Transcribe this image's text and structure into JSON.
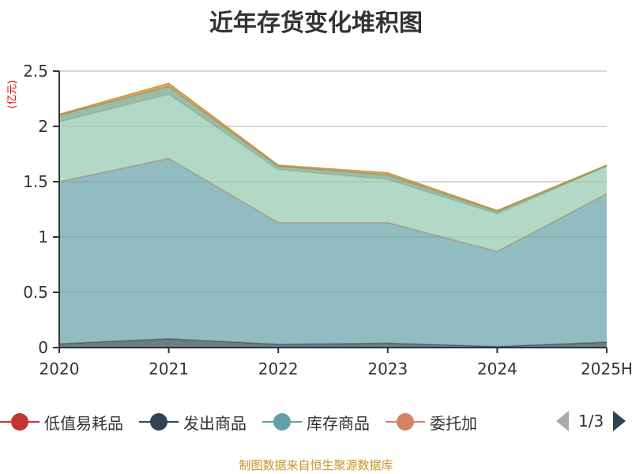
{
  "title": "近年存货变化堆积图",
  "unit": "(亿元)",
  "source": "制图数据来自恒生聚源数据库",
  "legend": {
    "items": [
      "低值易耗品",
      "发出商品",
      "库存商品",
      "委托加"
    ],
    "page": "1/3"
  },
  "chart_data": {
    "type": "area",
    "stacked": true,
    "title": "近年存货变化堆积图",
    "ylabel": "(亿元)",
    "categories": [
      "2020",
      "2021",
      "2022",
      "2023",
      "2024",
      "2025H"
    ],
    "ylim": [
      0,
      2.5
    ],
    "yticks": [
      "0",
      "0.5",
      "1",
      "1.5",
      "2",
      "2.5"
    ],
    "grid": true,
    "legend_position": "bottom",
    "series": [
      {
        "name": "低值易耗品",
        "color": "#c23531",
        "values": [
          0,
          0,
          0,
          0,
          0,
          0
        ]
      },
      {
        "name": "发出商品",
        "color": "#2f4554",
        "values": [
          0.035,
          0.08,
          0.03,
          0.04,
          0.01,
          0.05
        ]
      },
      {
        "name": "库存商品",
        "color": "#61a0a8",
        "values": [
          1.465,
          1.63,
          1.1,
          1.09,
          0.86,
          1.34
        ]
      },
      {
        "name": "委托加",
        "color": "#d48265",
        "values": [
          0,
          0,
          0,
          0,
          0,
          0
        ]
      },
      {
        "name": "",
        "color": "#91c7ae",
        "values": [
          0.54,
          0.58,
          0.48,
          0.39,
          0.34,
          0.25
        ]
      },
      {
        "name": "",
        "color": "#749f83",
        "values": [
          0.06,
          0.07,
          0.03,
          0.04,
          0.02,
          0.005
        ]
      },
      {
        "name": "",
        "color": "#ca8622",
        "values": [
          0.01,
          0.03,
          0.01,
          0.02,
          0.01,
          0.005
        ]
      }
    ]
  }
}
